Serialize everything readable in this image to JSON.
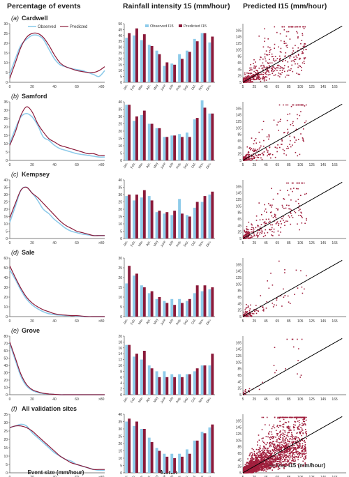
{
  "headers": {
    "col1": "Percentage of events",
    "col2": "Rainfall intensity 15 (mm/hour)",
    "col3": "Predicted I15 (mm/hour)"
  },
  "footers": {
    "col1": "Event size (mm/hour)",
    "col2": "Month",
    "col3": "Observed I15 (mm/hour)"
  },
  "legends": {
    "distribution": [
      "Observed",
      "Predicted"
    ],
    "monthly": [
      "Observed I15",
      "Predicted I15"
    ]
  },
  "colors": {
    "observed": "#8ecbea",
    "predicted": "#8b1a3a",
    "scatter": "#a01e3c",
    "line": "#000000",
    "axis": "#555555"
  },
  "chart_data": {
    "type": "composite",
    "months": [
      "Jan.",
      "Feb.",
      "Mar.",
      "Apr.",
      "May",
      "June",
      "July",
      "Aug.",
      "Sep.",
      "Oct.",
      "Nov.",
      "Dec."
    ],
    "dist_x_ticks": [
      "0",
      "20",
      "40",
      "60",
      ">80"
    ],
    "scatter_ticks": [
      "5",
      "25",
      "45",
      "65",
      "85",
      "105",
      "125",
      "145",
      "165"
    ],
    "panels": [
      {
        "label": "(a)",
        "site": "Cardwell",
        "dist_yticks": [
          "0",
          "5",
          "10",
          "15",
          "20",
          "25",
          "30"
        ],
        "dist_ymax": 30,
        "observed": [
          [
            0,
            4
          ],
          [
            5,
            12
          ],
          [
            10,
            19
          ],
          [
            15,
            22
          ],
          [
            20,
            24
          ],
          [
            25,
            24
          ],
          [
            30,
            22
          ],
          [
            35,
            17
          ],
          [
            40,
            12
          ],
          [
            45,
            9
          ],
          [
            50,
            8
          ],
          [
            55,
            7
          ],
          [
            60,
            6.5
          ],
          [
            65,
            6
          ],
          [
            70,
            5
          ],
          [
            75,
            4
          ],
          [
            80,
            3
          ],
          [
            85,
            6
          ]
        ],
        "predicted": [
          [
            0,
            2
          ],
          [
            5,
            10
          ],
          [
            10,
            18
          ],
          [
            15,
            23
          ],
          [
            20,
            25
          ],
          [
            25,
            25
          ],
          [
            30,
            23
          ],
          [
            35,
            19
          ],
          [
            40,
            14
          ],
          [
            45,
            10
          ],
          [
            50,
            8
          ],
          [
            55,
            7
          ],
          [
            60,
            6
          ],
          [
            65,
            5.5
          ],
          [
            70,
            5
          ],
          [
            75,
            5
          ],
          [
            80,
            6
          ],
          [
            85,
            8
          ]
        ],
        "bar_yticks": [
          "0",
          "5",
          "10",
          "15",
          "20",
          "25",
          "30",
          "35",
          "40",
          "45",
          "50"
        ],
        "bar_ymax": 50,
        "obs_bars": [
          38,
          40,
          36,
          32,
          27,
          14,
          16,
          24,
          27,
          37,
          42,
          34
        ],
        "pred_bars": [
          42,
          46,
          41,
          31,
          24,
          17,
          15,
          20,
          26,
          35,
          42,
          39
        ],
        "scatter_n": 520,
        "scatter_spread": 0.55
      },
      {
        "label": "(b)",
        "site": "Samford",
        "dist_yticks": [
          "0",
          "5",
          "10",
          "15",
          "20",
          "25",
          "30",
          "35"
        ],
        "dist_ymax": 35,
        "observed": [
          [
            0,
            10
          ],
          [
            5,
            19
          ],
          [
            10,
            26
          ],
          [
            15,
            28
          ],
          [
            20,
            26
          ],
          [
            25,
            21
          ],
          [
            30,
            14
          ],
          [
            35,
            12
          ],
          [
            40,
            9
          ],
          [
            45,
            7
          ],
          [
            50,
            6
          ],
          [
            55,
            5
          ],
          [
            60,
            4
          ],
          [
            65,
            3.5
          ],
          [
            70,
            3
          ],
          [
            75,
            2.5
          ],
          [
            80,
            2
          ],
          [
            85,
            2
          ]
        ],
        "predicted": [
          [
            0,
            9
          ],
          [
            5,
            17
          ],
          [
            10,
            27
          ],
          [
            15,
            32
          ],
          [
            20,
            29
          ],
          [
            25,
            22
          ],
          [
            30,
            17
          ],
          [
            35,
            13
          ],
          [
            40,
            11
          ],
          [
            45,
            9
          ],
          [
            50,
            8
          ],
          [
            55,
            7
          ],
          [
            60,
            6
          ],
          [
            65,
            5
          ],
          [
            70,
            4
          ],
          [
            75,
            4
          ],
          [
            80,
            3
          ],
          [
            85,
            3
          ]
        ],
        "bar_yticks": [
          "0",
          "5",
          "10",
          "15",
          "20",
          "25",
          "30",
          "35",
          "40"
        ],
        "bar_ymax": 40,
        "obs_bars": [
          38,
          27,
          31,
          25,
          22,
          16,
          17,
          18,
          19,
          28,
          41,
          32
        ],
        "pred_bars": [
          38,
          30,
          34,
          25,
          22,
          16,
          17,
          16,
          16,
          29,
          36,
          32
        ],
        "scatter_n": 260,
        "scatter_spread": 0.6
      },
      {
        "label": "(c)",
        "site": "Kempsey",
        "dist_yticks": [
          "0",
          "5",
          "10",
          "15",
          "20",
          "25",
          "30",
          "35",
          "40"
        ],
        "dist_ymax": 40,
        "observed": [
          [
            0,
            11
          ],
          [
            5,
            22
          ],
          [
            10,
            33
          ],
          [
            15,
            35
          ],
          [
            20,
            31
          ],
          [
            25,
            26
          ],
          [
            30,
            20
          ],
          [
            35,
            17
          ],
          [
            40,
            13
          ],
          [
            45,
            10
          ],
          [
            50,
            7
          ],
          [
            55,
            5
          ],
          [
            60,
            4
          ],
          [
            65,
            3
          ],
          [
            70,
            2.5
          ],
          [
            75,
            2
          ],
          [
            80,
            2
          ],
          [
            85,
            2
          ]
        ],
        "predicted": [
          [
            0,
            14
          ],
          [
            5,
            24
          ],
          [
            10,
            33
          ],
          [
            15,
            35
          ],
          [
            20,
            31
          ],
          [
            25,
            28
          ],
          [
            30,
            24
          ],
          [
            35,
            20
          ],
          [
            40,
            16
          ],
          [
            45,
            12
          ],
          [
            50,
            9
          ],
          [
            55,
            7
          ],
          [
            60,
            5
          ],
          [
            65,
            4
          ],
          [
            70,
            3
          ],
          [
            75,
            2
          ],
          [
            80,
            2
          ],
          [
            85,
            2
          ]
        ],
        "bar_yticks": [
          "0",
          "5",
          "10",
          "15",
          "20",
          "25",
          "30",
          "35",
          "40"
        ],
        "bar_ymax": 40,
        "obs_bars": [
          29,
          26,
          28,
          29,
          18,
          17,
          16,
          27,
          16,
          21,
          25,
          30
        ],
        "pred_bars": [
          30,
          30,
          33,
          26,
          19,
          18,
          19,
          17,
          15,
          25,
          29,
          32
        ],
        "scatter_n": 300,
        "scatter_spread": 0.6
      },
      {
        "label": "(d)",
        "site": "Sale",
        "dist_yticks": [
          "0",
          "10",
          "20",
          "30",
          "40",
          "50",
          "60"
        ],
        "dist_ymax": 60,
        "observed": [
          [
            0,
            48
          ],
          [
            5,
            38
          ],
          [
            10,
            27
          ],
          [
            15,
            18
          ],
          [
            20,
            12
          ],
          [
            25,
            8
          ],
          [
            30,
            5
          ],
          [
            35,
            3
          ],
          [
            40,
            2
          ],
          [
            45,
            1.5
          ],
          [
            50,
            1
          ],
          [
            55,
            1
          ],
          [
            60,
            0.5
          ],
          [
            65,
            0
          ],
          [
            70,
            0
          ],
          [
            75,
            0
          ],
          [
            80,
            0
          ],
          [
            85,
            0
          ]
        ],
        "predicted": [
          [
            0,
            52
          ],
          [
            5,
            40
          ],
          [
            10,
            29
          ],
          [
            15,
            20
          ],
          [
            20,
            14
          ],
          [
            25,
            10
          ],
          [
            30,
            7
          ],
          [
            35,
            5
          ],
          [
            40,
            3
          ],
          [
            45,
            2
          ],
          [
            50,
            1.5
          ],
          [
            55,
            1
          ],
          [
            60,
            1
          ],
          [
            65,
            0.5
          ],
          [
            70,
            0
          ],
          [
            75,
            0
          ],
          [
            80,
            0
          ],
          [
            85,
            0
          ]
        ],
        "bar_yticks": [
          "0",
          "5",
          "10",
          "15",
          "20",
          "25",
          "30"
        ],
        "bar_ymax": 30,
        "obs_bars": [
          17,
          21,
          16,
          12,
          9,
          8,
          9,
          9,
          8,
          12,
          13,
          14
        ],
        "pred_bars": [
          26,
          22,
          15,
          13,
          10,
          7,
          6,
          7,
          9,
          16,
          16,
          15
        ],
        "scatter_n": 110,
        "scatter_spread": 0.55
      },
      {
        "label": "(e)",
        "site": "Grove",
        "dist_yticks": [
          "0",
          "10",
          "20",
          "30",
          "40",
          "50",
          "60",
          "70",
          "80"
        ],
        "dist_ymax": 80,
        "observed": [
          [
            0,
            70
          ],
          [
            5,
            47
          ],
          [
            10,
            25
          ],
          [
            15,
            12
          ],
          [
            20,
            6
          ],
          [
            25,
            3
          ],
          [
            30,
            1.5
          ],
          [
            35,
            1
          ],
          [
            40,
            0.5
          ],
          [
            45,
            0
          ],
          [
            50,
            0
          ],
          [
            55,
            0
          ],
          [
            60,
            0
          ],
          [
            65,
            0
          ],
          [
            70,
            0
          ],
          [
            75,
            0
          ],
          [
            80,
            0
          ],
          [
            85,
            0
          ]
        ],
        "predicted": [
          [
            0,
            72
          ],
          [
            5,
            50
          ],
          [
            10,
            28
          ],
          [
            15,
            14
          ],
          [
            20,
            7
          ],
          [
            25,
            4
          ],
          [
            30,
            2
          ],
          [
            35,
            1
          ],
          [
            40,
            0.5
          ],
          [
            45,
            0
          ],
          [
            50,
            0
          ],
          [
            55,
            0
          ],
          [
            60,
            0
          ],
          [
            65,
            0
          ],
          [
            70,
            0
          ],
          [
            75,
            0
          ],
          [
            80,
            0
          ],
          [
            85,
            0
          ]
        ],
        "bar_yticks": [
          "0",
          "2",
          "4",
          "6",
          "8",
          "10",
          "12",
          "14",
          "16",
          "18",
          "20"
        ],
        "bar_ymax": 20,
        "obs_bars": [
          17,
          13,
          12,
          10,
          8,
          8,
          7,
          7,
          7,
          8,
          10,
          10
        ],
        "pred_bars": [
          17,
          14,
          15,
          9,
          6,
          6,
          6,
          6,
          7,
          9,
          10,
          14
        ],
        "scatter_n": 40,
        "scatter_spread": 0.5
      },
      {
        "label": "(f)",
        "site": "All validation sites",
        "dist_yticks": [
          "0",
          "5",
          "10",
          "15",
          "20",
          "25",
          "30",
          "35"
        ],
        "dist_ymax": 35,
        "observed": [
          [
            0,
            27
          ],
          [
            5,
            28
          ],
          [
            10,
            29
          ],
          [
            15,
            28
          ],
          [
            20,
            24
          ],
          [
            25,
            21
          ],
          [
            30,
            18
          ],
          [
            35,
            15
          ],
          [
            40,
            12
          ],
          [
            45,
            10
          ],
          [
            50,
            8
          ],
          [
            55,
            7
          ],
          [
            60,
            5
          ],
          [
            65,
            4
          ],
          [
            70,
            3
          ],
          [
            75,
            2
          ],
          [
            80,
            1.5
          ],
          [
            85,
            1.5
          ]
        ],
        "predicted": [
          [
            0,
            27
          ],
          [
            5,
            28
          ],
          [
            10,
            28
          ],
          [
            15,
            27
          ],
          [
            20,
            25
          ],
          [
            25,
            22
          ],
          [
            30,
            19
          ],
          [
            35,
            16
          ],
          [
            40,
            13
          ],
          [
            45,
            10
          ],
          [
            50,
            8
          ],
          [
            55,
            6
          ],
          [
            60,
            5
          ],
          [
            65,
            4
          ],
          [
            70,
            3
          ],
          [
            75,
            2
          ],
          [
            80,
            2
          ],
          [
            85,
            2
          ]
        ],
        "bar_yticks": [
          "0",
          "5",
          "10",
          "15",
          "20",
          "25",
          "30",
          "35",
          "40"
        ],
        "bar_ymax": 40,
        "obs_bars": [
          35,
          32,
          30,
          24,
          17,
          13,
          13,
          13,
          16,
          22,
          28,
          31
        ],
        "pred_bars": [
          37,
          35,
          30,
          21,
          15,
          11,
          10,
          11,
          13,
          22,
          27,
          33
        ],
        "scatter_n": 2600,
        "scatter_spread": 0.5
      }
    ]
  }
}
